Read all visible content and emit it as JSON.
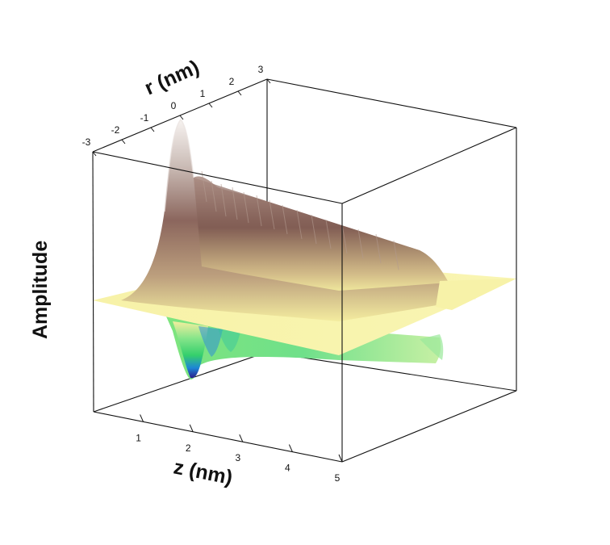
{
  "chart_data": {
    "type": "surface3d",
    "z_axis": {
      "label": "z (nm)",
      "ticks": [
        "1",
        "2",
        "3",
        "4",
        "5"
      ],
      "range": [
        0,
        5
      ]
    },
    "r_axis": {
      "label": "r (nm)",
      "ticks": [
        "-3",
        "-2",
        "-1",
        "0",
        "1",
        "2",
        "3"
      ],
      "range": [
        -3,
        3
      ]
    },
    "amplitude_axis": {
      "label": "Amplitude"
    },
    "surface": {
      "description_of_shape": "radial wave packet: positive ridge peaking at z≈2, r=0 decaying toward z≈5; negative lobe (trough) beside it; flat plane elsewhere",
      "peak_z": 2.0,
      "trough_z": 2.05,
      "end_z": 5.0
    },
    "colormap": {
      "positive": [
        "#f6f0a6",
        "#d9c28a",
        "#a77f6c",
        "#7f5a52",
        "#c8b9b4",
        "#f4f1ef"
      ],
      "zero": "#f6f0a6",
      "negative": [
        "#f6f0a6",
        "#7fe07f",
        "#3dd26a",
        "#18a6c8",
        "#1f3fbf",
        "#2a1f8c"
      ]
    }
  }
}
